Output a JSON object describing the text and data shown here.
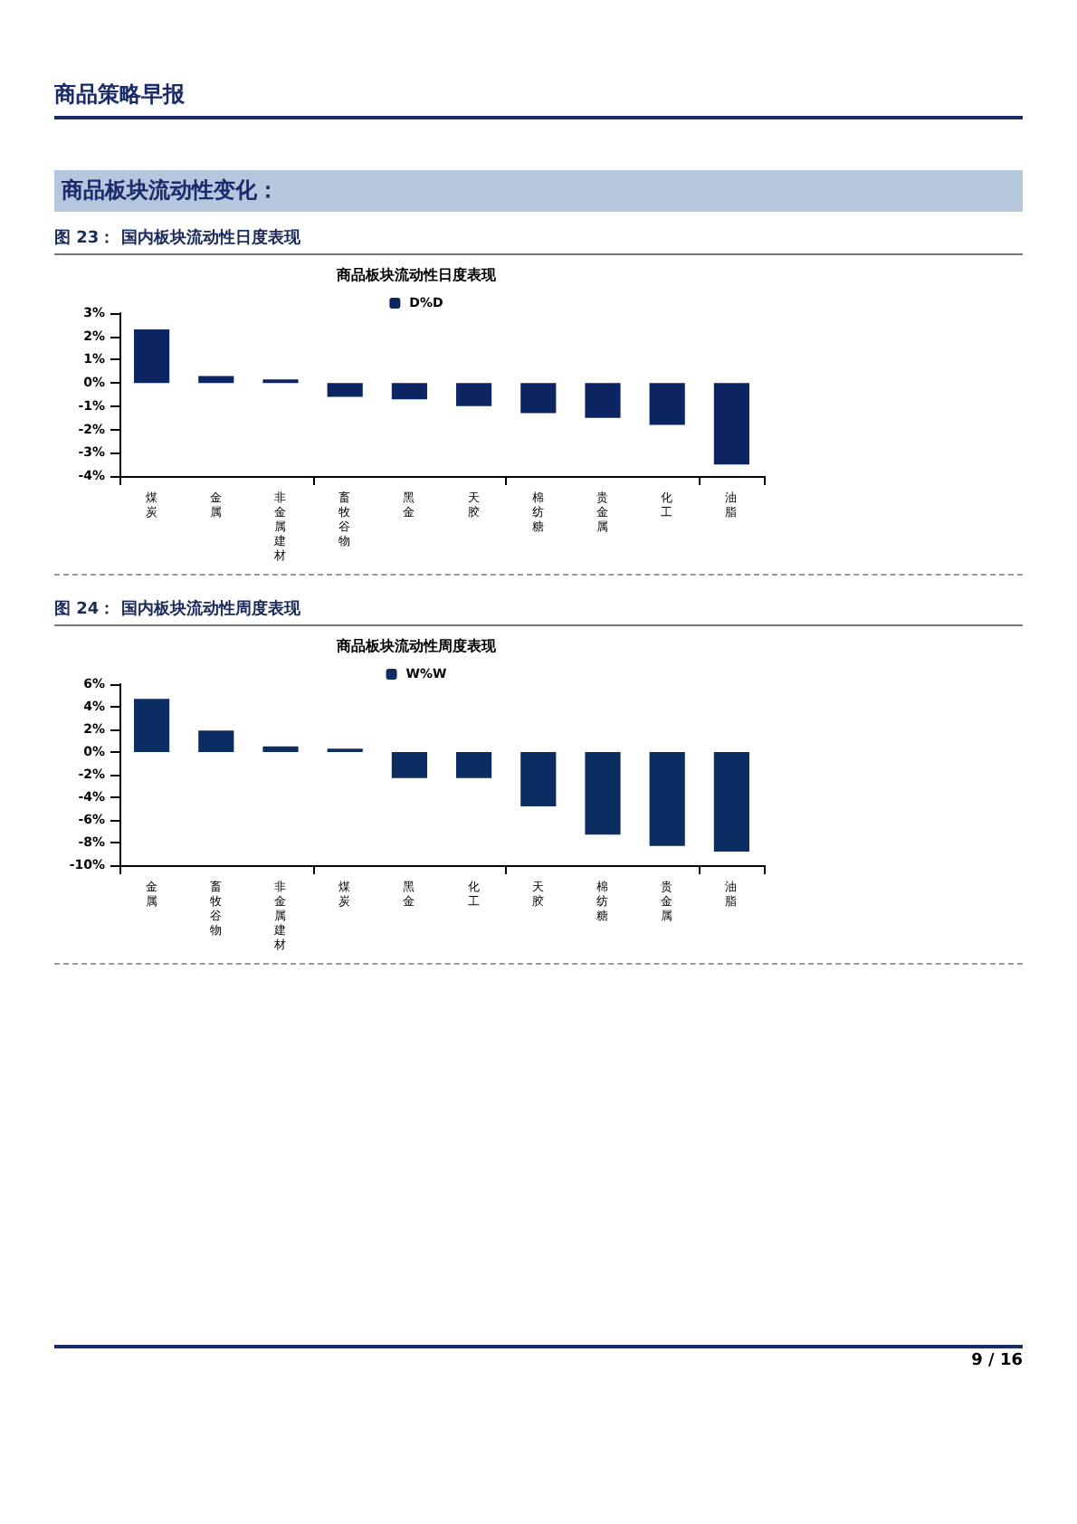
{
  "chart_data": [
    {
      "type": "bar",
      "title": "商品板块流动性日度表现",
      "subtitle": "图 23：  国内板块流动性日度表现",
      "annotations": [
        "商品策略早报",
        "商品板块流动性变化："
      ],
      "categories": [
        "煤炭",
        "金属",
        "非金属建材",
        "畜牧谷物",
        "黑金",
        "天胶",
        "棉纺糖",
        "贵金属",
        "化工",
        "油脂"
      ],
      "series": [
        {
          "name": "D%D",
          "color": "#0c2461",
          "values": [
            2.3,
            0.3,
            0.15,
            -0.6,
            -0.7,
            -1.0,
            -1.3,
            -1.5,
            -1.8,
            -3.5
          ]
        }
      ],
      "ylim": [
        -4,
        3
      ],
      "yticks": [
        {
          "value": -4,
          "label": "-4%"
        },
        {
          "value": -3,
          "label": "-3%"
        },
        {
          "value": -2,
          "label": "-2%"
        },
        {
          "value": -1,
          "label": "-1%"
        },
        {
          "value": 0,
          "label": "0%"
        },
        {
          "value": 1,
          "label": "1%"
        },
        {
          "value": 2,
          "label": "2%"
        },
        {
          "value": 3,
          "label": "3%"
        }
      ],
      "grid": false,
      "legend": "top"
    },
    {
      "type": "bar",
      "title": "商品板块流动性周度表现",
      "subtitle": "图 24：  国内板块流动性周度表现",
      "annotations": [
        "9 / 16"
      ],
      "categories": [
        "金属",
        "畜牧谷物",
        "非金属建材",
        "煤炭",
        "黑金",
        "化工",
        "天胶",
        "棉纺糖",
        "贵金属",
        "油脂"
      ],
      "series": [
        {
          "name": "W%W",
          "color": "#0c2d62",
          "values": [
            4.7,
            1.9,
            0.5,
            0.3,
            -2.3,
            -2.3,
            -4.8,
            -7.3,
            -8.3,
            -8.8
          ]
        }
      ],
      "ylim": [
        -10,
        6
      ],
      "yticks": [
        {
          "value": -10,
          "label": "-10%"
        },
        {
          "value": -8,
          "label": "-8%"
        },
        {
          "value": -6,
          "label": "-6%"
        },
        {
          "value": -4,
          "label": "-4%"
        },
        {
          "value": -2,
          "label": "-2%"
        },
        {
          "value": 0,
          "label": "0%"
        },
        {
          "value": 2,
          "label": "2%"
        },
        {
          "value": 4,
          "label": "4%"
        },
        {
          "value": 6,
          "label": "6%"
        }
      ],
      "grid": false,
      "legend": "top"
    }
  ]
}
